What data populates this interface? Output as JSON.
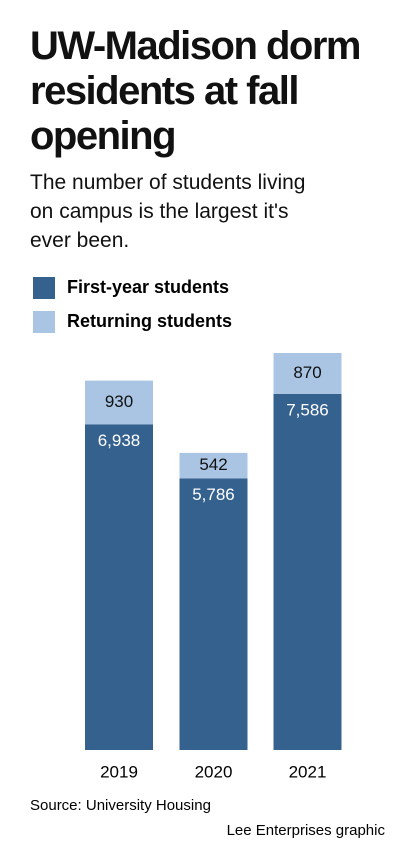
{
  "chart_data": {
    "type": "stacked_bar",
    "title": "UW-Madison dorm residents at fall opening",
    "subtitle": "The number of students living on campus is the largest it's ever been.",
    "categories": [
      "2019",
      "2020",
      "2021"
    ],
    "series": [
      {
        "name": "First-year students",
        "color": "#35618f",
        "values": [
          6938,
          5786,
          7586
        ],
        "value_labels": [
          "6,938",
          "5,786",
          "7,586"
        ]
      },
      {
        "name": "Returning students",
        "color": "#a9c5e3",
        "values": [
          930,
          542,
          870
        ]
      }
    ],
    "source": "Source: University Housing",
    "credit": "Lee Enterprises graphic"
  }
}
